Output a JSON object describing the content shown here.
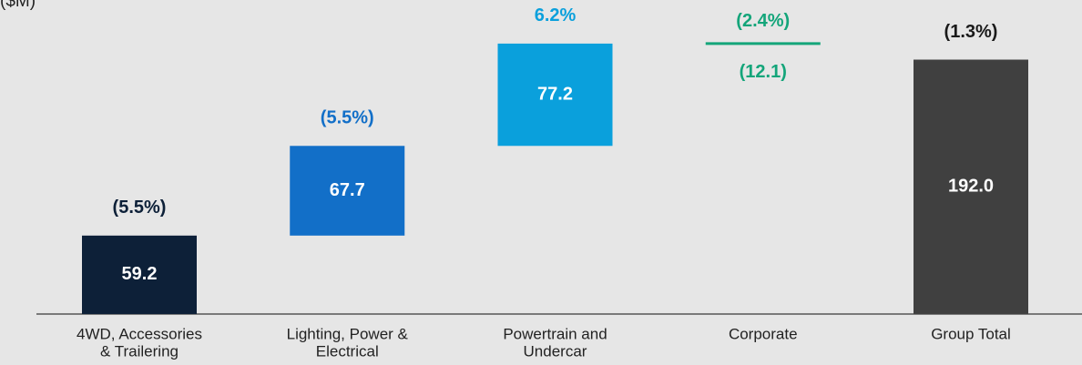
{
  "chart_data": {
    "type": "waterfall",
    "title": "($M)",
    "categories": [
      [
        "4WD, Accessories",
        "& Trailering"
      ],
      [
        "Lighting, Power &",
        "Electrical"
      ],
      [
        "Powertrain and",
        "Undercar"
      ],
      [
        "Corporate"
      ],
      [
        "Group Total"
      ]
    ],
    "values": [
      59.2,
      67.7,
      77.2,
      -12.1,
      192.0
    ],
    "value_labels": [
      "59.2",
      "67.7",
      "77.2",
      "(12.1)",
      "192.0"
    ],
    "kinds": [
      "step",
      "step",
      "step",
      "step",
      "total"
    ],
    "annotations": [
      "(5.5%)",
      "(5.5%)",
      "6.2%",
      "(2.4%)",
      "(1.3%)"
    ],
    "colors": [
      "#0d2038",
      "#126fc8",
      "#0aa0dc",
      "#14a57a",
      "#404040"
    ],
    "annotation_colors": [
      "#0d2038",
      "#126fc8",
      "#0aa0dc",
      "#14a57a",
      "#1a1a1a"
    ],
    "ylim": [
      0,
      237
    ]
  }
}
